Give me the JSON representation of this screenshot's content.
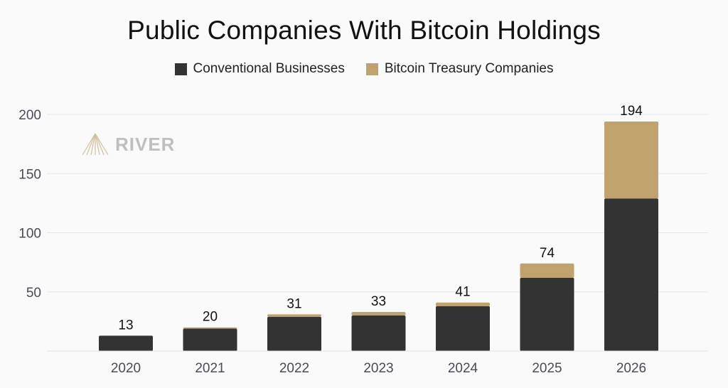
{
  "chart_data": {
    "type": "bar",
    "stacked": true,
    "title": "Public Companies With Bitcoin Holdings",
    "categories": [
      "2020",
      "2021",
      "2022",
      "2023",
      "2024",
      "2025",
      "2026"
    ],
    "series": [
      {
        "name": "Conventional Businesses",
        "color": "#333333",
        "values": [
          13,
          19,
          29,
          30,
          38,
          62,
          129
        ]
      },
      {
        "name": "Bitcoin Treasury Companies",
        "color": "#bfa26d",
        "values": [
          0,
          1,
          2,
          3,
          3,
          12,
          65
        ]
      }
    ],
    "totals": [
      "13",
      "20",
      "31",
      "33",
      "41",
      "74",
      "194"
    ],
    "yticks": [
      50,
      100,
      150,
      200
    ],
    "ylim": [
      0,
      200
    ],
    "legend_position": "top-center",
    "grid": true,
    "xlabel": "",
    "ylabel": ""
  },
  "watermark": {
    "text": "RIVER",
    "icon": "river-logo-icon"
  }
}
